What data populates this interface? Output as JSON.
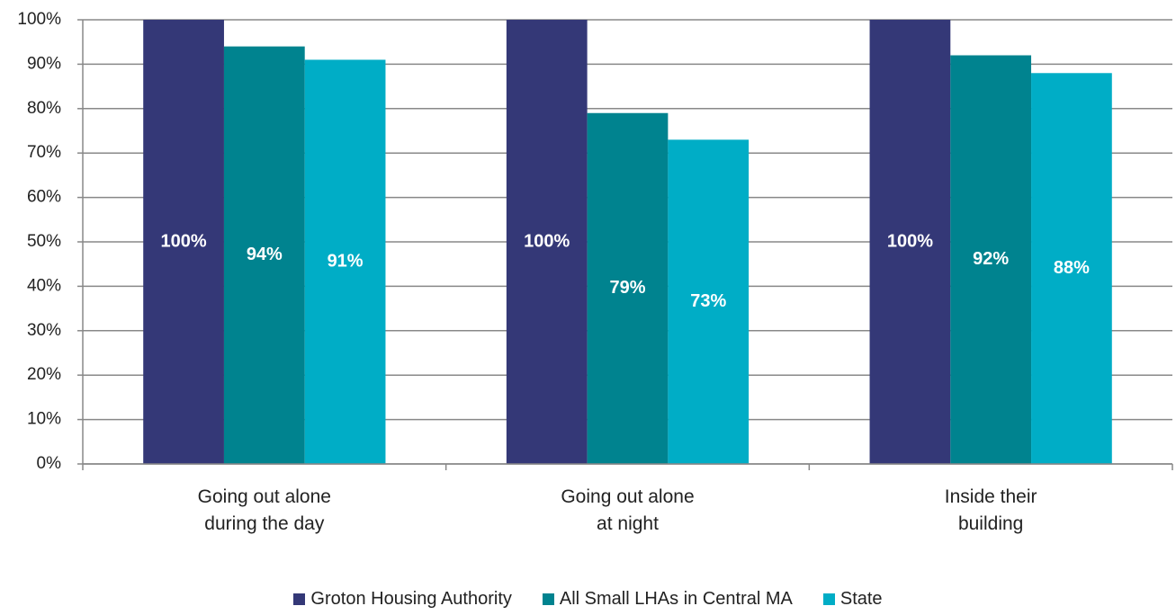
{
  "chart_data": {
    "type": "bar",
    "categories": [
      "Going out alone during the day",
      "Going out alone at night",
      "Inside their building"
    ],
    "series": [
      {
        "name": "Groton Housing Authority",
        "color": "#343877",
        "values": [
          100,
          100,
          100
        ],
        "value_labels": [
          "100%",
          "100%",
          "100%"
        ]
      },
      {
        "name": "All Small LHAs in Central MA",
        "color": "#00838f",
        "values": [
          94,
          79,
          92
        ],
        "value_labels": [
          "94%",
          "79%",
          "92%"
        ]
      },
      {
        "name": "State",
        "color": "#00adc6",
        "values": [
          91,
          73,
          88
        ],
        "value_labels": [
          "91%",
          "73%",
          "88%"
        ]
      }
    ],
    "ylim": [
      0,
      100
    ],
    "yticks": [
      {
        "value": 0,
        "label": "0%"
      },
      {
        "value": 10,
        "label": "10%"
      },
      {
        "value": 20,
        "label": "20%"
      },
      {
        "value": 30,
        "label": "30%"
      },
      {
        "value": 40,
        "label": "40%"
      },
      {
        "value": 50,
        "label": "50%"
      },
      {
        "value": 60,
        "label": "60%"
      },
      {
        "value": 70,
        "label": "70%"
      },
      {
        "value": 80,
        "label": "80%"
      },
      {
        "value": 90,
        "label": "90%"
      },
      {
        "value": 100,
        "label": "100%"
      }
    ],
    "grid": true,
    "legend": "bottom"
  }
}
